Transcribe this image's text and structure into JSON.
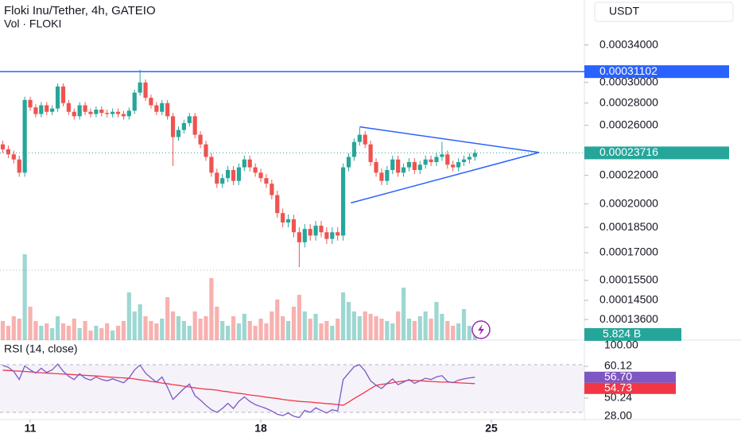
{
  "chart_data": {
    "type": "candlestick",
    "title": "Floki Inu/Tether, 4h, GATEIO",
    "subtitle": "Vol · FLOKI",
    "currency": "USDT",
    "log_scale": true,
    "ylim": [
      0.000127,
      0.000395
    ],
    "yticks": [
      {
        "value": 0.00034,
        "label": "0.00034000"
      },
      {
        "value": 0.0003,
        "label": "0.00030000"
      },
      {
        "value": 0.00028,
        "label": "0.00028000"
      },
      {
        "value": 0.00026,
        "label": "0.00026000"
      },
      {
        "value": 0.00022,
        "label": "0.00022000"
      },
      {
        "value": 0.0002,
        "label": "0.00020000"
      },
      {
        "value": 0.000185,
        "label": "0.00018500"
      },
      {
        "value": 0.00017,
        "label": "0.00017000"
      },
      {
        "value": 0.000155,
        "label": "0.00015500"
      },
      {
        "value": 0.000145,
        "label": "0.00014500"
      },
      {
        "value": 0.000136,
        "label": "0.00013600"
      }
    ],
    "xticks": [
      {
        "value": 5,
        "label": "11"
      },
      {
        "value": 47,
        "label": "18"
      },
      {
        "value": 89,
        "label": "25"
      }
    ],
    "up_color": "#26a69a",
    "down_color": "#ef5350",
    "open": [
      0.000244,
      0.00024,
      0.000236,
      0.000232,
      0.000222,
      0.000283,
      0.000276,
      0.00027,
      0.000278,
      0.000272,
      0.000275,
      0.000296,
      0.00028,
      0.000272,
      0.000268,
      0.000278,
      0.000272,
      0.00027,
      0.000274,
      0.000271,
      0.00027,
      0.000272,
      0.00027,
      0.000268,
      0.000273,
      0.00029,
      0.0003,
      0.000285,
      0.000278,
      0.000272,
      0.00028,
      0.000268,
      0.00025,
      0.000256,
      0.000262,
      0.000268,
      0.000252,
      0.000244,
      0.000234,
      0.000222,
      0.000214,
      0.000218,
      0.000224,
      0.000216,
      0.000226,
      0.000232,
      0.000226,
      0.000222,
      0.000218,
      0.000214,
      0.000206,
      0.000194,
      0.000188,
      0.00019,
      0.000182,
      0.000176,
      0.000184,
      0.00018,
      0.000186,
      0.000182,
      0.000178,
      0.000182,
      0.00018,
      0.000226,
      0.000234,
      0.000246,
      0.000252,
      0.000244,
      0.00023,
      0.000222,
      0.000216,
      0.000224,
      0.000232,
      0.000222,
      0.000226,
      0.00023,
      0.000224,
      0.000228,
      0.000232,
      0.00023,
      0.000234,
      0.000236,
      0.000228,
      0.000226,
      0.00023,
      0.000232,
      0.000234
    ],
    "high": [
      0.000247,
      0.000243,
      0.000239,
      0.000235,
      0.000286,
      0.000286,
      0.000279,
      0.000281,
      0.000281,
      0.000278,
      0.000299,
      0.000299,
      0.000283,
      0.000275,
      0.000281,
      0.000281,
      0.000275,
      0.000277,
      0.000277,
      0.000274,
      0.000275,
      0.000275,
      0.000273,
      0.000276,
      0.000293,
      0.000313,
      0.000303,
      0.000288,
      0.000281,
      0.000283,
      0.000283,
      0.000271,
      0.000259,
      0.000265,
      0.000271,
      0.000271,
      0.000255,
      0.000247,
      0.000237,
      0.000225,
      0.000221,
      0.000227,
      0.000227,
      0.000229,
      0.000235,
      0.000235,
      0.000229,
      0.000225,
      0.000221,
      0.000217,
      0.000209,
      0.000197,
      0.000193,
      0.000193,
      0.000185,
      0.000187,
      0.000187,
      0.000189,
      0.000189,
      0.000185,
      0.000185,
      0.000185,
      0.000229,
      0.000237,
      0.000249,
      0.000258,
      0.000255,
      0.000247,
      0.000233,
      0.000225,
      0.000227,
      0.000235,
      0.000235,
      0.000229,
      0.000233,
      0.000233,
      0.000231,
      0.000235,
      0.000235,
      0.000237,
      0.000246,
      0.000239,
      0.000231,
      0.000233,
      0.000235,
      0.000237,
      0.00024
    ],
    "low": [
      0.000237,
      0.000233,
      0.000229,
      0.000219,
      0.000219,
      0.000273,
      0.000267,
      0.000267,
      0.000269,
      0.000269,
      0.000272,
      0.000277,
      0.000269,
      0.000265,
      0.000265,
      0.000269,
      0.000267,
      0.000267,
      0.000268,
      0.000267,
      0.000267,
      0.000267,
      0.000265,
      0.000265,
      0.00027,
      0.000287,
      0.000282,
      0.000275,
      0.000269,
      0.000269,
      0.000265,
      0.000227,
      0.000247,
      0.000253,
      0.000259,
      0.000249,
      0.000241,
      0.000231,
      0.000219,
      0.000211,
      0.000211,
      0.000215,
      0.000213,
      0.000213,
      0.000223,
      0.000223,
      0.000219,
      0.000215,
      0.000211,
      0.000203,
      0.000191,
      0.000185,
      0.000185,
      0.000179,
      0.000162,
      0.000173,
      0.000177,
      0.000177,
      0.000179,
      0.000175,
      0.000175,
      0.000177,
      0.000177,
      0.000223,
      0.000231,
      0.000243,
      0.000241,
      0.000227,
      0.000219,
      0.000213,
      0.000213,
      0.000221,
      0.000219,
      0.000219,
      0.000223,
      0.000221,
      0.000221,
      0.000225,
      0.000227,
      0.000227,
      0.000231,
      0.000225,
      0.000223,
      0.000223,
      0.000227,
      0.000229,
      0.000231
    ],
    "close": [
      0.00024,
      0.000236,
      0.000232,
      0.000222,
      0.000283,
      0.000276,
      0.00027,
      0.000278,
      0.000272,
      0.000275,
      0.000296,
      0.00028,
      0.000272,
      0.000268,
      0.000278,
      0.000272,
      0.00027,
      0.000274,
      0.000271,
      0.00027,
      0.000272,
      0.00027,
      0.000268,
      0.000273,
      0.00029,
      0.0003,
      0.000285,
      0.000278,
      0.000272,
      0.00028,
      0.000268,
      0.00025,
      0.000256,
      0.000262,
      0.000268,
      0.000252,
      0.000244,
      0.000234,
      0.000222,
      0.000214,
      0.000218,
      0.000224,
      0.000216,
      0.000226,
      0.000232,
      0.000226,
      0.000222,
      0.000218,
      0.000214,
      0.000206,
      0.000194,
      0.000188,
      0.00019,
      0.000182,
      0.000176,
      0.000184,
      0.00018,
      0.000186,
      0.000182,
      0.000178,
      0.000182,
      0.00018,
      0.000226,
      0.000234,
      0.000246,
      0.000252,
      0.000244,
      0.00023,
      0.000222,
      0.000216,
      0.000224,
      0.000232,
      0.000222,
      0.000226,
      0.00023,
      0.000224,
      0.000228,
      0.000232,
      0.00023,
      0.000234,
      0.000236,
      0.000228,
      0.000226,
      0.00023,
      0.000232,
      0.000234,
      0.00023716
    ],
    "volume": {
      "values": [
        8,
        6,
        10,
        9,
        36,
        14,
        8,
        6,
        7,
        5,
        10,
        7,
        6,
        9,
        5,
        8,
        4,
        6,
        5,
        7,
        4,
        6,
        8,
        20,
        12,
        15,
        10,
        8,
        7,
        9,
        18,
        12,
        10,
        8,
        6,
        12,
        9,
        10,
        26,
        14,
        8,
        6,
        10,
        7,
        11,
        8,
        6,
        9,
        7,
        12,
        17,
        10,
        8,
        14,
        19,
        12,
        9,
        11,
        7,
        8,
        6,
        9,
        20,
        16,
        12,
        10,
        12,
        11,
        10,
        9,
        8,
        7,
        12,
        22,
        9,
        8,
        10,
        12,
        9,
        16,
        11,
        8,
        6,
        7,
        13,
        6,
        5.824
      ],
      "last_label": "5.824 B"
    },
    "hline": {
      "value": 0.00031102,
      "color": "#2962ff"
    },
    "triangle": [
      {
        "x": [
          65,
          97.7
        ],
        "y": [
          0.0002587,
          0.0002375
        ]
      },
      {
        "x": [
          63.4,
          97.7
        ],
        "y": [
          0.0002007,
          0.0002375
        ]
      }
    ],
    "rsi": {
      "title": "RSI (14, close)",
      "color": "#7e57c2",
      "ma_color": "#f23645",
      "ylim": [
        43.82,
        68.26
      ],
      "yticks": [
        60.12,
        50.24
      ],
      "pane_labels": [
        "100.00",
        "28.00"
      ],
      "values": [
        60.4,
        59.8,
        58.5,
        56.0,
        60.2,
        59.0,
        58.0,
        59.5,
        58.2,
        59.0,
        60.8,
        58.6,
        57.0,
        56.0,
        57.8,
        56.4,
        55.8,
        56.8,
        56.0,
        55.6,
        56.2,
        55.6,
        55.0,
        56.5,
        59.0,
        60.5,
        58.0,
        56.5,
        55.2,
        56.8,
        53.6,
        49.8,
        51.5,
        53.2,
        54.6,
        51.0,
        49.6,
        48.0,
        46.6,
        45.8,
        47.0,
        48.6,
        47.0,
        49.2,
        50.6,
        49.2,
        48.2,
        47.6,
        47.0,
        46.2,
        45.2,
        44.8,
        45.6,
        44.6,
        44.2,
        46.4,
        45.8,
        47.2,
        46.4,
        45.6,
        46.6,
        46.2,
        56.0,
        58.0,
        60.0,
        60.6,
        58.6,
        55.6,
        54.2,
        53.2,
        54.8,
        56.2,
        54.4,
        55.2,
        56.0,
        54.8,
        55.6,
        56.4,
        56.0,
        56.8,
        57.2,
        55.4,
        55.0,
        55.8,
        56.2,
        56.5,
        56.7
      ],
      "last_label": "56.70",
      "ma_values": [
        58.9,
        58.8,
        58.7,
        58.6,
        58.5,
        58.4,
        58.2,
        58.1,
        58.0,
        57.9,
        57.8,
        57.7,
        57.6,
        57.5,
        57.4,
        57.3,
        57.2,
        57.1,
        57.0,
        56.8,
        56.7,
        56.6,
        56.5,
        56.4,
        56.2,
        55.9,
        55.7,
        55.4,
        55.2,
        54.9,
        54.7,
        54.4,
        54.2,
        53.9,
        53.7,
        53.4,
        53.2,
        53.0,
        52.9,
        52.7,
        52.4,
        52.2,
        51.9,
        51.7,
        51.5,
        51.2,
        51.0,
        50.8,
        50.5,
        50.3,
        50.1,
        49.8,
        49.6,
        49.4,
        49.2,
        49.1,
        49.0,
        48.8,
        48.7,
        48.5,
        48.4,
        48.2,
        48.0,
        49.0,
        50.1,
        51.1,
        52.1,
        53.2,
        54.2,
        54.5,
        54.7,
        55.0,
        55.3,
        55.5,
        55.8,
        55.7,
        55.6,
        55.5,
        55.4,
        55.3,
        55.2,
        55.2,
        55.1,
        55.0,
        54.9,
        54.8,
        54.73
      ]
    }
  }
}
